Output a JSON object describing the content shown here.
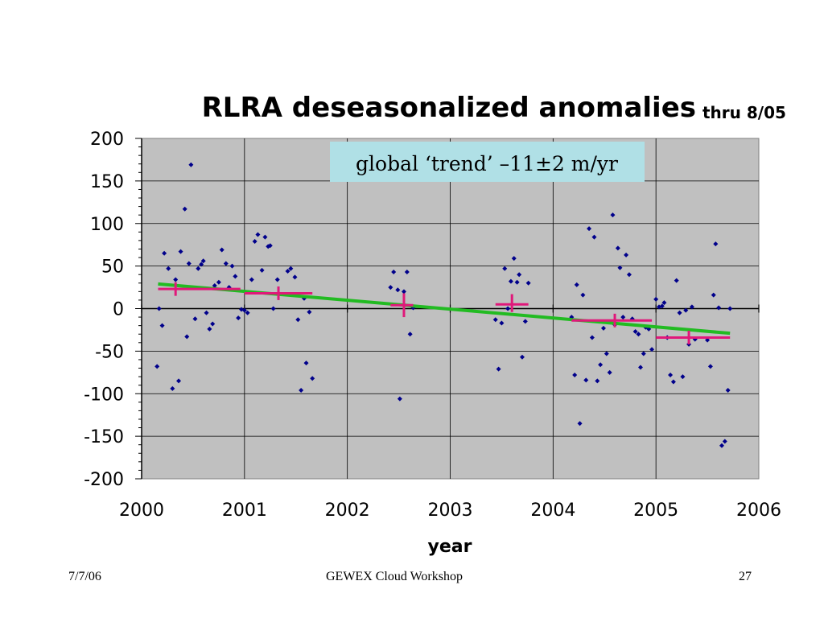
{
  "slide": {
    "footer_left": "7/7/06",
    "footer_center": "GEWEX Cloud Workshop",
    "footer_right": "27"
  },
  "colors": {
    "plot_background": "#c0c0c0",
    "points": "#00008b",
    "trend_line": "#22bb22",
    "annual_means": "#e0187a",
    "annotation_box": "#b0e0e6"
  },
  "chart_data": {
    "type": "scatter",
    "title": "RLRA deseasonalized anomalies",
    "subtitle": "thru 8/05",
    "xlabel": "year",
    "ylabel": "",
    "xlim": [
      2000,
      2006
    ],
    "ylim": [
      -200,
      200
    ],
    "x_ticks": [
      "2000",
      "2001",
      "2002",
      "2003",
      "2004",
      "2005",
      "2006"
    ],
    "y_ticks": [
      "200",
      "150",
      "100",
      "50",
      "0",
      "-50",
      "-100",
      "-150",
      "-200"
    ],
    "grid": true,
    "annotation": "global ‘trend’ –11±2 m/yr",
    "points": [
      [
        2000.15,
        -68
      ],
      [
        2000.17,
        0
      ],
      [
        2000.2,
        -20
      ],
      [
        2000.22,
        65
      ],
      [
        2000.26,
        47
      ],
      [
        2000.3,
        -94
      ],
      [
        2000.33,
        34
      ],
      [
        2000.36,
        -85
      ],
      [
        2000.38,
        67
      ],
      [
        2000.42,
        117
      ],
      [
        2000.44,
        -33
      ],
      [
        2000.46,
        53
      ],
      [
        2000.48,
        169
      ],
      [
        2000.52,
        -12
      ],
      [
        2000.55,
        47
      ],
      [
        2000.58,
        52
      ],
      [
        2000.6,
        56
      ],
      [
        2000.63,
        -5
      ],
      [
        2000.66,
        -24
      ],
      [
        2000.69,
        -18
      ],
      [
        2000.71,
        27
      ],
      [
        2000.75,
        31
      ],
      [
        2000.78,
        69
      ],
      [
        2000.82,
        53
      ],
      [
        2000.85,
        25
      ],
      [
        2000.88,
        50
      ],
      [
        2000.91,
        38
      ],
      [
        2000.94,
        -11
      ],
      [
        2000.97,
        -1
      ],
      [
        2001.0,
        -2
      ],
      [
        2001.03,
        -5
      ],
      [
        2001.07,
        34
      ],
      [
        2001.1,
        79
      ],
      [
        2001.13,
        87
      ],
      [
        2001.17,
        45
      ],
      [
        2001.2,
        84
      ],
      [
        2001.23,
        73
      ],
      [
        2001.25,
        74
      ],
      [
        2001.28,
        0
      ],
      [
        2001.32,
        34
      ],
      [
        2001.42,
        44
      ],
      [
        2001.45,
        47
      ],
      [
        2001.49,
        37
      ],
      [
        2001.52,
        -13
      ],
      [
        2001.55,
        -96
      ],
      [
        2001.58,
        12
      ],
      [
        2001.6,
        -64
      ],
      [
        2001.63,
        -4
      ],
      [
        2001.66,
        -82
      ],
      [
        2002.42,
        25
      ],
      [
        2002.45,
        43
      ],
      [
        2002.49,
        22
      ],
      [
        2002.51,
        -106
      ],
      [
        2002.55,
        20
      ],
      [
        2002.58,
        43
      ],
      [
        2002.61,
        -30
      ],
      [
        2002.64,
        1
      ],
      [
        2003.44,
        -13
      ],
      [
        2003.47,
        -71
      ],
      [
        2003.5,
        -17
      ],
      [
        2003.53,
        47
      ],
      [
        2003.56,
        0
      ],
      [
        2003.59,
        32
      ],
      [
        2003.62,
        59
      ],
      [
        2003.65,
        31
      ],
      [
        2003.67,
        40
      ],
      [
        2003.7,
        -57
      ],
      [
        2003.73,
        -15
      ],
      [
        2003.76,
        30
      ],
      [
        2004.18,
        -10
      ],
      [
        2004.21,
        -78
      ],
      [
        2004.23,
        28
      ],
      [
        2004.26,
        -135
      ],
      [
        2004.29,
        16
      ],
      [
        2004.32,
        -84
      ],
      [
        2004.35,
        94
      ],
      [
        2004.38,
        -34
      ],
      [
        2004.4,
        84
      ],
      [
        2004.43,
        -85
      ],
      [
        2004.46,
        -66
      ],
      [
        2004.49,
        -23
      ],
      [
        2004.52,
        -53
      ],
      [
        2004.55,
        -75
      ],
      [
        2004.58,
        110
      ],
      [
        2004.6,
        -19
      ],
      [
        2004.63,
        71
      ],
      [
        2004.65,
        48
      ],
      [
        2004.68,
        -10
      ],
      [
        2004.71,
        63
      ],
      [
        2004.74,
        40
      ],
      [
        2004.77,
        -12
      ],
      [
        2004.8,
        -27
      ],
      [
        2004.83,
        -30
      ],
      [
        2004.85,
        -69
      ],
      [
        2004.88,
        -53
      ],
      [
        2004.9,
        -22
      ],
      [
        2004.93,
        -24
      ],
      [
        2004.96,
        -48
      ],
      [
        2005.0,
        11
      ],
      [
        2005.03,
        2
      ],
      [
        2005.06,
        3
      ],
      [
        2005.08,
        7
      ],
      [
        2005.11,
        -34
      ],
      [
        2005.14,
        -78
      ],
      [
        2005.17,
        -86
      ],
      [
        2005.2,
        33
      ],
      [
        2005.23,
        -5
      ],
      [
        2005.26,
        -80
      ],
      [
        2005.29,
        -2
      ],
      [
        2005.32,
        -42
      ],
      [
        2005.35,
        2
      ],
      [
        2005.38,
        -36
      ],
      [
        2005.5,
        -37
      ],
      [
        2005.53,
        -68
      ],
      [
        2005.56,
        16
      ],
      [
        2005.58,
        76
      ],
      [
        2005.61,
        1
      ],
      [
        2005.64,
        -161
      ],
      [
        2005.67,
        -156
      ],
      [
        2005.7,
        -96
      ],
      [
        2005.72,
        0
      ]
    ],
    "trend": {
      "start": [
        2000.16,
        29
      ],
      "end": [
        2005.72,
        -29
      ]
    },
    "annual_means": [
      {
        "x": 2000.33,
        "y": 23,
        "x_extent": [
          2000.16,
          2000.96
        ],
        "y_extent": [
          15,
          31
        ]
      },
      {
        "x": 2001.33,
        "y": 18,
        "x_extent": [
          2001.0,
          2001.66
        ],
        "y_extent": [
          10,
          26
        ]
      },
      {
        "x": 2002.55,
        "y": 4,
        "x_extent": [
          2002.42,
          2002.64
        ],
        "y_extent": [
          -10,
          18
        ]
      },
      {
        "x": 2003.6,
        "y": 5,
        "x_extent": [
          2003.44,
          2003.76
        ],
        "y_extent": [
          -4,
          17
        ]
      },
      {
        "x": 2004.6,
        "y": -14,
        "x_extent": [
          2004.18,
          2004.96
        ],
        "y_extent": [
          -22,
          -6
        ]
      },
      {
        "x": 2005.32,
        "y": -34,
        "x_extent": [
          2005.0,
          2005.72
        ],
        "y_extent": [
          -42,
          -26
        ]
      }
    ]
  }
}
